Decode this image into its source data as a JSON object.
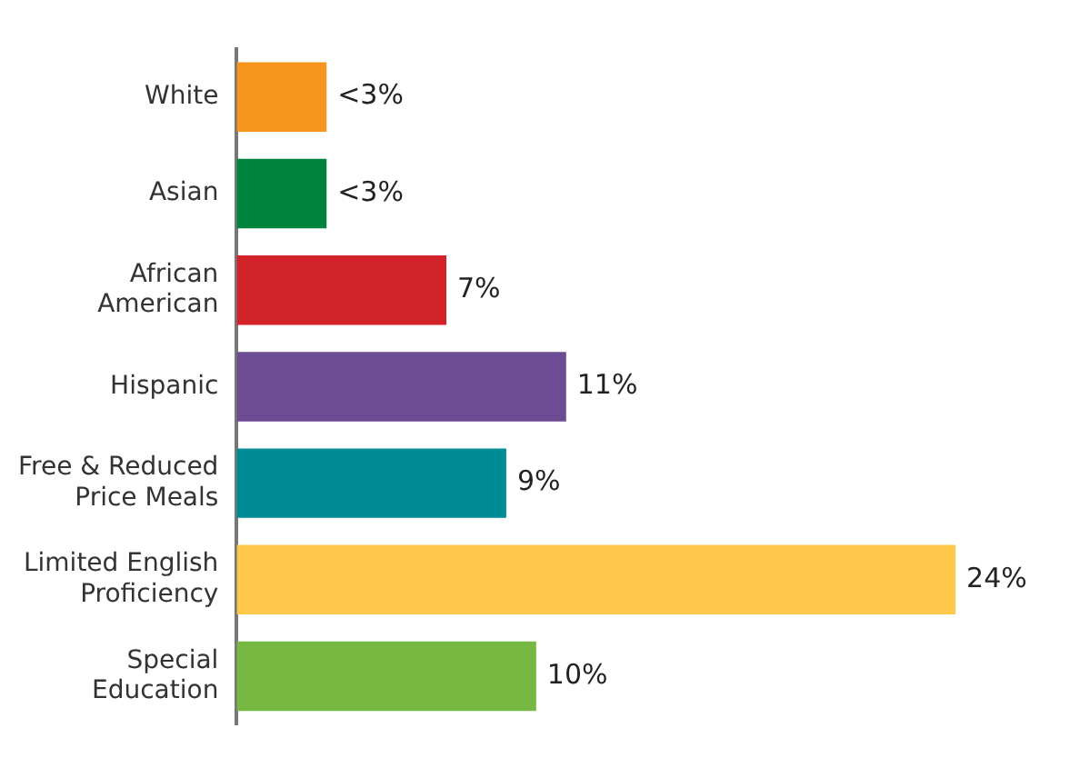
{
  "chart_data": {
    "type": "bar",
    "orientation": "horizontal",
    "categories": [
      "White",
      "Asian",
      "African\nAmerican",
      "Hispanic",
      "Free & Reduced\nPrice Meals",
      "Limited English\nProficiency",
      "Special\nEducation"
    ],
    "values": [
      3,
      3,
      7,
      11,
      9,
      24,
      10
    ],
    "colors": [
      "#f7941d",
      "#00843d",
      "#d2232a",
      "#6d4c94",
      "#008c95",
      "#ffc84a",
      "#77b843"
    ],
    "value_labels": [
      "<3%",
      "<3%",
      "7%",
      "11%",
      "9%",
      "24%",
      "10%"
    ],
    "legend": false
  }
}
